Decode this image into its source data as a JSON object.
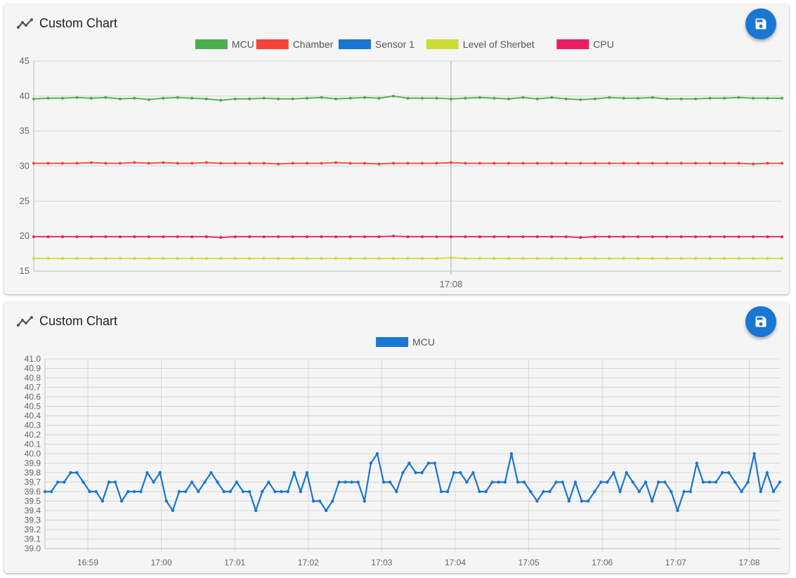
{
  "charts": [
    {
      "title": "Custom Chart",
      "icon": "line-chart-icon",
      "save_icon": "save-icon",
      "chart_data": {
        "type": "line",
        "ylim": [
          15,
          45
        ],
        "yticks": [
          15,
          20,
          25,
          30,
          35,
          40,
          45
        ],
        "xticks": [
          {
            "label": "17:08",
            "value": 29
          }
        ],
        "xlim": [
          0,
          52
        ],
        "grid": true,
        "legend_position": "top-center",
        "series": [
          {
            "name": "MCU",
            "color": "#4caf50",
            "values": [
              39.6,
              39.7,
              39.7,
              39.8,
              39.7,
              39.8,
              39.6,
              39.7,
              39.5,
              39.7,
              39.8,
              39.7,
              39.6,
              39.4,
              39.6,
              39.6,
              39.7,
              39.6,
              39.6,
              39.7,
              39.8,
              39.6,
              39.7,
              39.8,
              39.7,
              40.0,
              39.7,
              39.7,
              39.7,
              39.6,
              39.7,
              39.8,
              39.7,
              39.6,
              39.8,
              39.6,
              39.8,
              39.6,
              39.5,
              39.6,
              39.8,
              39.7,
              39.7,
              39.8,
              39.6,
              39.6,
              39.6,
              39.7,
              39.7,
              39.8,
              39.7,
              39.7,
              39.7
            ]
          },
          {
            "name": "Chamber",
            "color": "#f44336",
            "values": [
              30.4,
              30.4,
              30.4,
              30.4,
              30.5,
              30.4,
              30.4,
              30.5,
              30.4,
              30.5,
              30.4,
              30.4,
              30.5,
              30.4,
              30.4,
              30.4,
              30.4,
              30.3,
              30.4,
              30.4,
              30.4,
              30.5,
              30.4,
              30.4,
              30.3,
              30.4,
              30.4,
              30.4,
              30.4,
              30.5,
              30.4,
              30.4,
              30.4,
              30.4,
              30.4,
              30.4,
              30.4,
              30.4,
              30.4,
              30.4,
              30.4,
              30.4,
              30.4,
              30.4,
              30.4,
              30.4,
              30.4,
              30.4,
              30.4,
              30.4,
              30.3,
              30.4,
              30.4
            ]
          },
          {
            "name": "Sensor 1",
            "color": "#1976d2",
            "values": []
          },
          {
            "name": "Level of Sherbet",
            "color": "#cddc39",
            "values": [
              16.8,
              16.8,
              16.8,
              16.8,
              16.8,
              16.8,
              16.8,
              16.8,
              16.8,
              16.8,
              16.8,
              16.8,
              16.8,
              16.8,
              16.8,
              16.8,
              16.8,
              16.8,
              16.8,
              16.8,
              16.8,
              16.8,
              16.8,
              16.8,
              16.8,
              16.8,
              16.8,
              16.8,
              16.8,
              16.9,
              16.8,
              16.8,
              16.8,
              16.8,
              16.8,
              16.8,
              16.8,
              16.8,
              16.8,
              16.8,
              16.8,
              16.8,
              16.8,
              16.8,
              16.8,
              16.8,
              16.8,
              16.8,
              16.8,
              16.8,
              16.8,
              16.8,
              16.8
            ]
          },
          {
            "name": "CPU",
            "color": "#e91e63",
            "values": [
              19.9,
              19.9,
              19.9,
              19.9,
              19.9,
              19.9,
              19.9,
              19.9,
              19.9,
              19.9,
              19.9,
              19.9,
              19.9,
              19.8,
              19.9,
              19.9,
              19.9,
              19.9,
              19.9,
              19.9,
              19.9,
              19.9,
              19.9,
              19.9,
              19.9,
              20.0,
              19.9,
              19.9,
              19.9,
              19.9,
              19.9,
              19.9,
              19.9,
              19.9,
              19.9,
              19.9,
              19.9,
              19.9,
              19.8,
              19.9,
              19.9,
              19.9,
              19.9,
              19.9,
              19.9,
              19.9,
              19.9,
              19.9,
              19.9,
              19.9,
              19.9,
              19.9,
              19.9
            ]
          }
        ]
      }
    },
    {
      "title": "Custom Chart",
      "icon": "line-chart-icon",
      "save_icon": "save-icon",
      "chart_data": {
        "type": "line",
        "ylim": [
          39.0,
          41.0
        ],
        "yticks": [
          39.0,
          39.1,
          39.2,
          39.3,
          39.4,
          39.5,
          39.6,
          39.7,
          39.8,
          39.9,
          40.0,
          40.1,
          40.2,
          40.3,
          40.4,
          40.5,
          40.6,
          40.7,
          40.8,
          40.9,
          41.0
        ],
        "xticks": [
          {
            "label": "16:59",
            "value": 7
          },
          {
            "label": "17:00",
            "value": 19
          },
          {
            "label": "17:01",
            "value": 31
          },
          {
            "label": "17:02",
            "value": 43
          },
          {
            "label": "17:03",
            "value": 55
          },
          {
            "label": "17:04",
            "value": 67
          },
          {
            "label": "17:05",
            "value": 79
          },
          {
            "label": "17:06",
            "value": 91
          },
          {
            "label": "17:07",
            "value": 103
          },
          {
            "label": "17:08",
            "value": 115
          }
        ],
        "xlim": [
          0,
          120
        ],
        "grid": true,
        "legend_position": "top-center",
        "series": [
          {
            "name": "MCU",
            "color": "#1976d2",
            "values": [
              39.6,
              39.6,
              39.7,
              39.7,
              39.8,
              39.8,
              39.7,
              39.6,
              39.6,
              39.5,
              39.7,
              39.7,
              39.5,
              39.6,
              39.6,
              39.6,
              39.8,
              39.7,
              39.8,
              39.5,
              39.4,
              39.6,
              39.6,
              39.7,
              39.6,
              39.7,
              39.8,
              39.7,
              39.6,
              39.6,
              39.7,
              39.6,
              39.6,
              39.4,
              39.6,
              39.7,
              39.6,
              39.6,
              39.6,
              39.8,
              39.6,
              39.8,
              39.5,
              39.5,
              39.4,
              39.5,
              39.7,
              39.7,
              39.7,
              39.7,
              39.5,
              39.9,
              40.0,
              39.7,
              39.7,
              39.6,
              39.8,
              39.9,
              39.8,
              39.8,
              39.9,
              39.9,
              39.6,
              39.6,
              39.8,
              39.8,
              39.7,
              39.8,
              39.6,
              39.6,
              39.7,
              39.7,
              39.7,
              40.0,
              39.7,
              39.7,
              39.6,
              39.5,
              39.6,
              39.6,
              39.7,
              39.7,
              39.5,
              39.7,
              39.5,
              39.5,
              39.6,
              39.7,
              39.7,
              39.8,
              39.6,
              39.8,
              39.7,
              39.6,
              39.7,
              39.5,
              39.7,
              39.7,
              39.6,
              39.4,
              39.6,
              39.6,
              39.9,
              39.7,
              39.7,
              39.7,
              39.8,
              39.8,
              39.7,
              39.6,
              39.7,
              40.0,
              39.6,
              39.8,
              39.6,
              39.7
            ]
          }
        ]
      }
    }
  ]
}
